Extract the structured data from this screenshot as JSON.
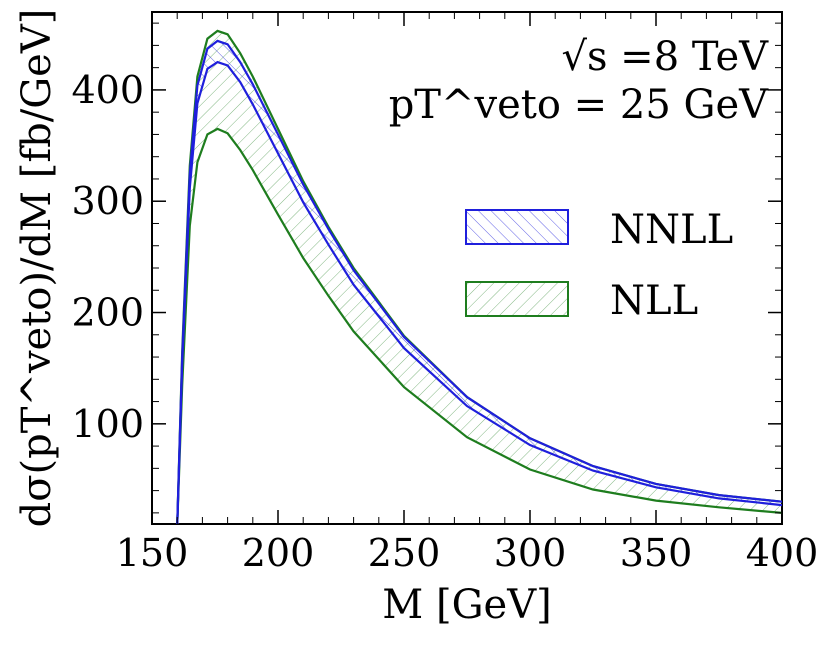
{
  "chart_data": {
    "type": "line",
    "title": "",
    "xlabel": "M [GeV]",
    "ylabel": "dσ(pT^veto)/dM [fb/GeV]",
    "xlim": [
      150,
      400
    ],
    "ylim": [
      10,
      470
    ],
    "xticks": [
      150,
      200,
      250,
      300,
      350,
      400
    ],
    "yticks": [
      100,
      200,
      300,
      400
    ],
    "grid": false,
    "annotations": {
      "line1": "√s =8 TeV",
      "line2": "pT^veto = 25 GeV"
    },
    "colors": {
      "NNLL": "#1f1fdc",
      "NLL": "#1e7d1e"
    },
    "x": [
      160,
      162,
      165,
      168,
      172,
      176,
      180,
      185,
      190,
      200,
      210,
      220,
      230,
      250,
      275,
      300,
      325,
      350,
      375,
      400
    ],
    "series": [
      {
        "name": "NNLL",
        "bound": "upper",
        "values": [
          8,
          160,
          325,
          404,
          437,
          444,
          441,
          425,
          405,
          360,
          315,
          275,
          238,
          178,
          124,
          87,
          62,
          46,
          36,
          30
        ]
      },
      {
        "name": "NNLL",
        "bound": "lower",
        "values": [
          8,
          155,
          312,
          388,
          419,
          425,
          422,
          407,
          387,
          343,
          299,
          261,
          225,
          168,
          116,
          81,
          58,
          43,
          33,
          27
        ]
      },
      {
        "name": "NLL",
        "bound": "upper",
        "values": [
          8,
          165,
          332,
          412,
          446,
          453,
          450,
          433,
          412,
          365,
          318,
          277,
          240,
          179,
          124,
          87,
          62,
          46,
          36,
          30
        ]
      },
      {
        "name": "NLL",
        "bound": "lower",
        "values": [
          8,
          135,
          278,
          335,
          360,
          365,
          361,
          346,
          328,
          288,
          249,
          215,
          183,
          133,
          88,
          59,
          41,
          31,
          25,
          20
        ]
      }
    ],
    "legend": {
      "placement": "right",
      "entries": [
        {
          "label": "NNLL",
          "series": "NNLL"
        },
        {
          "label": "NLL",
          "series": "NLL"
        }
      ]
    }
  }
}
